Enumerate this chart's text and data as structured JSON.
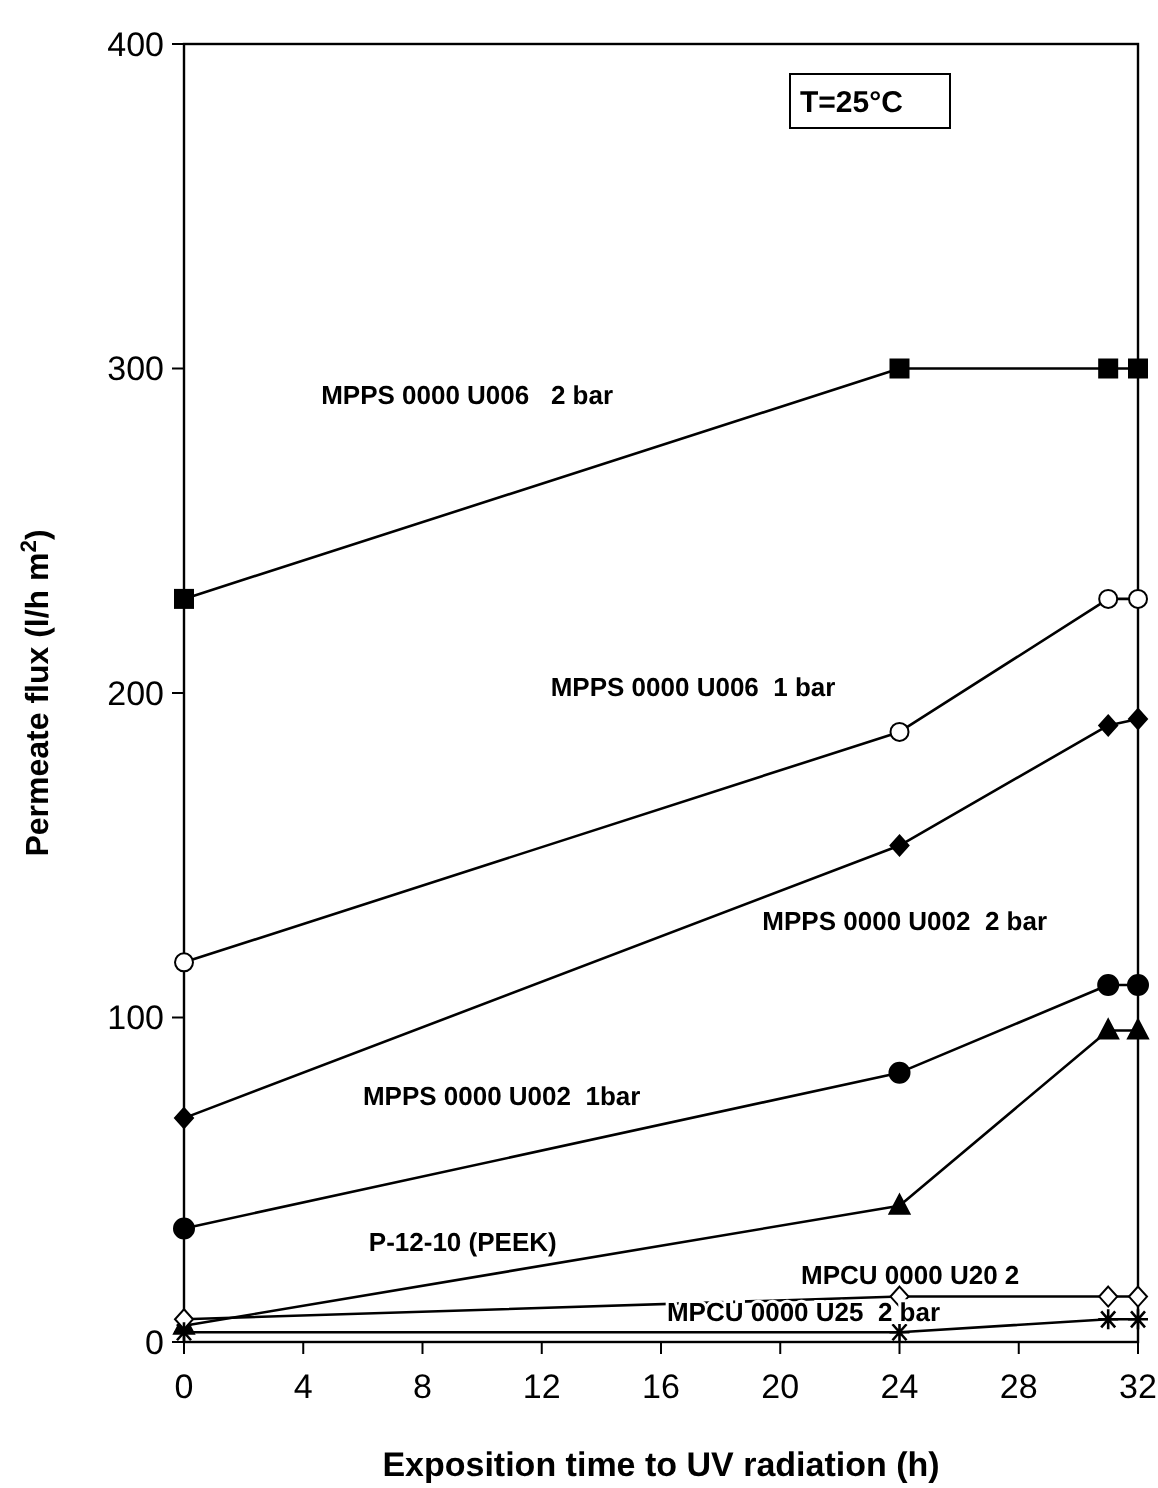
{
  "chart_data": {
    "type": "line",
    "xlabel": "Exposition time to UV radiation (h)",
    "ylabel": "Permeate flux (l/h m$^{2}$)",
    "annotations": [
      "T=25°C"
    ],
    "xlim": [
      0,
      32
    ],
    "xticks": [
      0,
      4,
      8,
      12,
      16,
      20,
      24,
      28,
      32
    ],
    "ylim": [
      0,
      400
    ],
    "yticks": [
      0,
      100,
      200,
      300,
      400
    ],
    "grid": false,
    "legend": false,
    "line_style": "solid",
    "series": [
      {
        "name": "MPPS 0000 U006   2 bar",
        "color": "#000000",
        "marker": "square",
        "x": [
          0,
          24,
          31,
          32
        ],
        "values": [
          229,
          300,
          300,
          300
        ]
      },
      {
        "name": "MPPS 0000 U006  1 bar",
        "color": "#000000",
        "marker": "circle",
        "x": [
          0,
          24,
          31,
          32
        ],
        "values": [
          117,
          188,
          229,
          229
        ]
      },
      {
        "name": "MPPS 0000 U002  2 bar",
        "color": "#000000",
        "marker": "diamond",
        "x": [
          0,
          24,
          31,
          32
        ],
        "values": [
          69,
          153,
          190,
          192
        ]
      },
      {
        "name": "MPPS 0000 U002  1bar",
        "color": "#000000",
        "marker": "circle",
        "x": [
          0,
          24,
          31,
          32
        ],
        "values": [
          35,
          83,
          110,
          110
        ]
      },
      {
        "name": "P-12-10 (PEEK)",
        "color": "#000000",
        "marker": "triangle",
        "x": [
          0,
          24,
          31,
          32
        ],
        "values": [
          5,
          42,
          96,
          96
        ]
      },
      {
        "name": "MPCU 0000 U20 2",
        "color": "#000000",
        "marker": "diamond",
        "x": [
          0,
          24,
          31,
          32
        ],
        "values": [
          7,
          14,
          14,
          14
        ]
      },
      {
        "name": "MPCU 0000 U25  2 bar",
        "color": "#000000",
        "marker": "cross",
        "x": [
          0,
          24,
          31,
          32
        ],
        "values": [
          3,
          3,
          7,
          7
        ]
      }
    ]
  }
}
